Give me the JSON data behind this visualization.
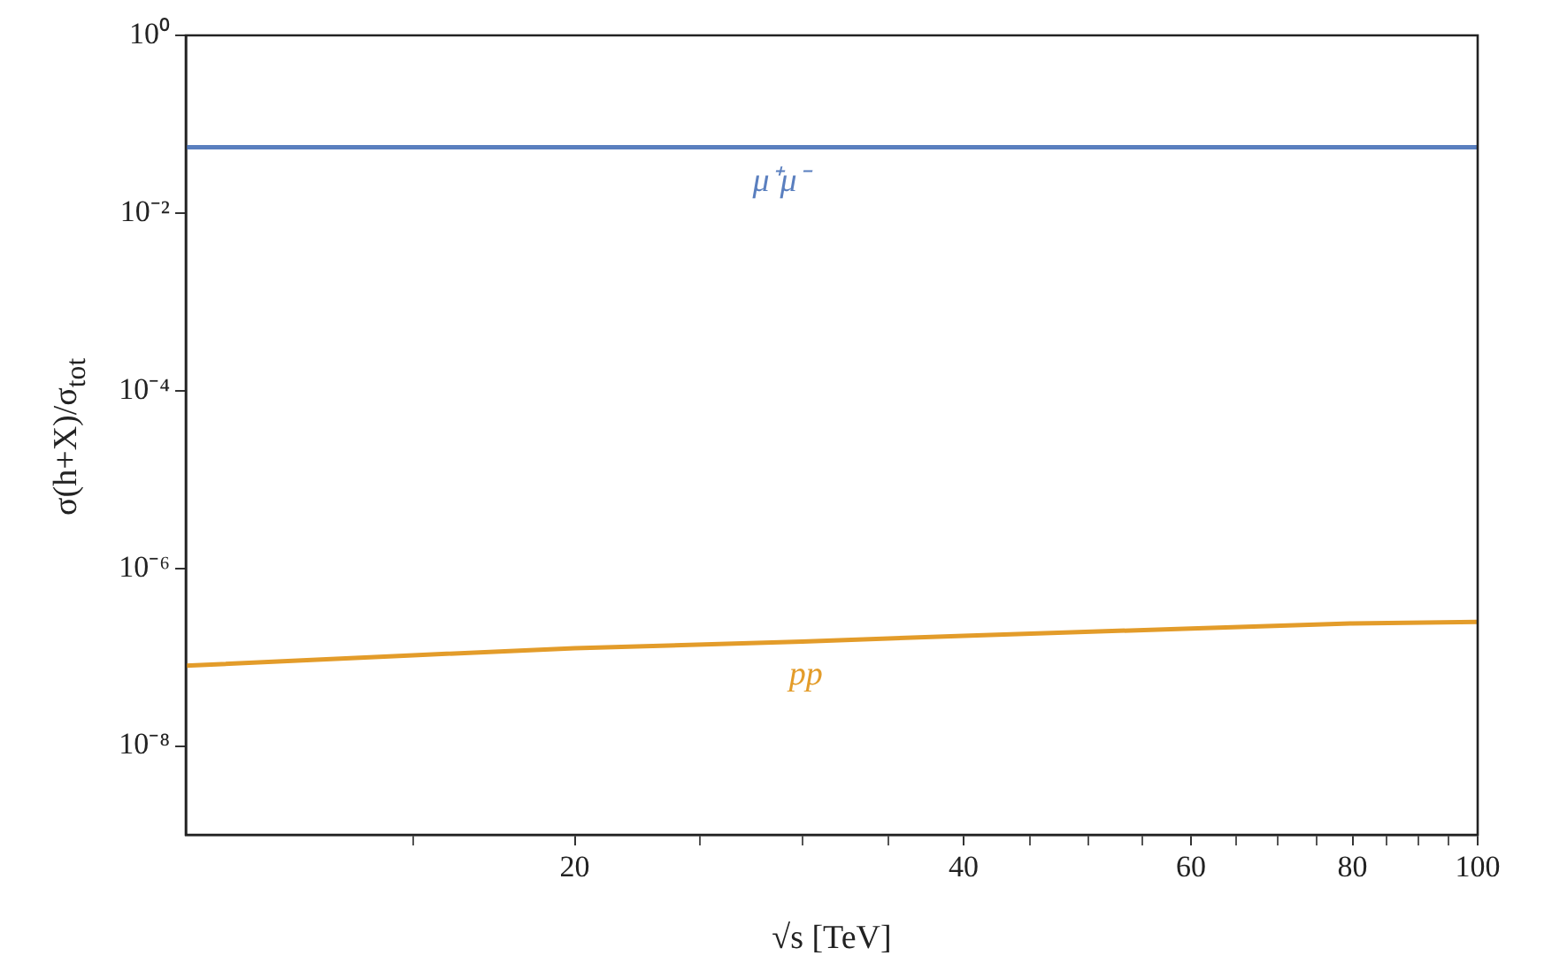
{
  "chart_data": {
    "type": "line",
    "xlabel": "√s [TeV]",
    "ylabel": "σ(h+X)/σ$_{tot}$",
    "log": "xy",
    "marker": "none",
    "legend": false,
    "xlim": [
      10,
      100
    ],
    "ylim": [
      1e-09,
      1
    ],
    "xticks": [
      {
        "value": 15,
        "label": null
      },
      20,
      {
        "value": 25,
        "label": null
      },
      {
        "value": 30,
        "label": null
      },
      {
        "value": 35,
        "label": null
      },
      40,
      {
        "value": 45,
        "label": null
      },
      {
        "value": 50,
        "label": null
      },
      {
        "value": 55,
        "label": null
      },
      60,
      {
        "value": 65,
        "label": null
      },
      {
        "value": 70,
        "label": null
      },
      {
        "value": 75,
        "label": null
      },
      80,
      {
        "value": 85,
        "label": null
      },
      {
        "value": 90,
        "label": null
      },
      {
        "value": 95,
        "label": null
      },
      100
    ],
    "yticks": [
      {
        "value": 1,
        "label": "10⁰"
      },
      {
        "value": 0.01,
        "label": "10⁻²"
      },
      {
        "value": 0.0001,
        "label": "10⁻⁴"
      },
      {
        "value": 1e-06,
        "label": "10⁻⁶"
      },
      {
        "value": 1e-08,
        "label": "10⁻⁸"
      }
    ],
    "series": [
      {
        "name": "μ⁺μ⁻",
        "color": "#5a7fbf",
        "x": [
          10,
          20,
          40,
          60,
          80,
          100
        ],
        "values": [
          0.055,
          0.055,
          0.055,
          0.055,
          0.055,
          0.055
        ]
      },
      {
        "name": "pp",
        "color": "#e39c2a",
        "x": [
          10,
          15,
          20,
          30,
          40,
          60,
          80,
          100
        ],
        "values": [
          8e-08,
          1.05e-07,
          1.26e-07,
          1.5e-07,
          1.74e-07,
          2.1e-07,
          2.4e-07,
          2.5e-07
        ]
      }
    ]
  }
}
